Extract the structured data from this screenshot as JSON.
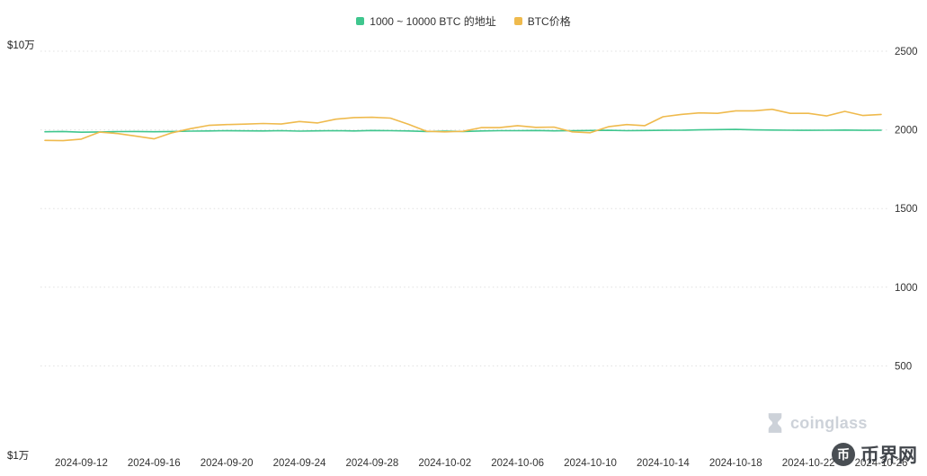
{
  "page": {
    "background": "#ffffff"
  },
  "legend": [
    {
      "label": "1000 ~ 10000 BTC 的地址",
      "color": "#3fc68e"
    },
    {
      "label": "BTC价格",
      "color": "#efba4d"
    }
  ],
  "watermark": {
    "brand": "coinglass",
    "site": "币界网"
  },
  "chart_data": {
    "type": "line",
    "x": [
      "2024-09-10",
      "2024-09-11",
      "2024-09-12",
      "2024-09-13",
      "2024-09-14",
      "2024-09-15",
      "2024-09-16",
      "2024-09-17",
      "2024-09-18",
      "2024-09-19",
      "2024-09-20",
      "2024-09-21",
      "2024-09-22",
      "2024-09-23",
      "2024-09-24",
      "2024-09-25",
      "2024-09-26",
      "2024-09-27",
      "2024-09-28",
      "2024-09-29",
      "2024-09-30",
      "2024-10-01",
      "2024-10-02",
      "2024-10-03",
      "2024-10-04",
      "2024-10-05",
      "2024-10-06",
      "2024-10-07",
      "2024-10-08",
      "2024-10-09",
      "2024-10-10",
      "2024-10-11",
      "2024-10-12",
      "2024-10-13",
      "2024-10-14",
      "2024-10-15",
      "2024-10-16",
      "2024-10-17",
      "2024-10-18",
      "2024-10-19",
      "2024-10-20",
      "2024-10-21",
      "2024-10-22",
      "2024-10-23",
      "2024-10-24",
      "2024-10-25",
      "2024-10-26"
    ],
    "x_tick_labels": [
      "2024-09-12",
      "2024-09-16",
      "2024-09-20",
      "2024-09-24",
      "2024-09-28",
      "2024-10-02",
      "2024-10-06",
      "2024-10-10",
      "2024-10-14",
      "2024-10-18",
      "2024-10-22",
      "2024-10-26"
    ],
    "left_axis": {
      "scale": "log",
      "min": 10000,
      "max": 100000,
      "tick_labels": {
        "top": "$10万",
        "bottom": "$1万"
      }
    },
    "right_axis": {
      "min": 0,
      "max": 2540,
      "ticks": [
        2500,
        2000,
        1500,
        1000,
        500
      ]
    },
    "grid": {
      "horizontal": true,
      "style": "dotted",
      "color": "#e0e0e0"
    },
    "legend_position": "top-center",
    "series": [
      {
        "name": "1000 ~ 10000 BTC 的地址",
        "axis": "right",
        "color": "#3fc68e",
        "values": [
          1988,
          1990,
          1985,
          1987,
          1989,
          1990,
          1988,
          1990,
          1992,
          1993,
          1995,
          1994,
          1993,
          1995,
          1992,
          1994,
          1995,
          1993,
          1996,
          1995,
          1993,
          1990,
          1992,
          1990,
          1993,
          1995,
          1995,
          1996,
          1994,
          1995,
          1996,
          1997,
          1995,
          1996,
          1997,
          1998,
          2000,
          2002,
          2003,
          2000,
          1999,
          1998,
          1997,
          1998,
          1999,
          1997,
          1998
        ]
      },
      {
        "name": "BTC价格",
        "axis": "left",
        "color": "#efba4d",
        "values": [
          57700,
          57600,
          58100,
          60500,
          60000,
          59100,
          58200,
          60300,
          61700,
          62900,
          63200,
          63350,
          63600,
          63400,
          64300,
          63800,
          65200,
          65800,
          65900,
          65600,
          63300,
          60800,
          60600,
          60800,
          62100,
          62100,
          62800,
          62200,
          62300,
          60600,
          60300,
          62400,
          63200,
          62800,
          66100,
          67000,
          67600,
          67400,
          68400,
          68400,
          69000,
          67400,
          67400,
          66400,
          68200,
          66600,
          67000
        ]
      }
    ]
  }
}
